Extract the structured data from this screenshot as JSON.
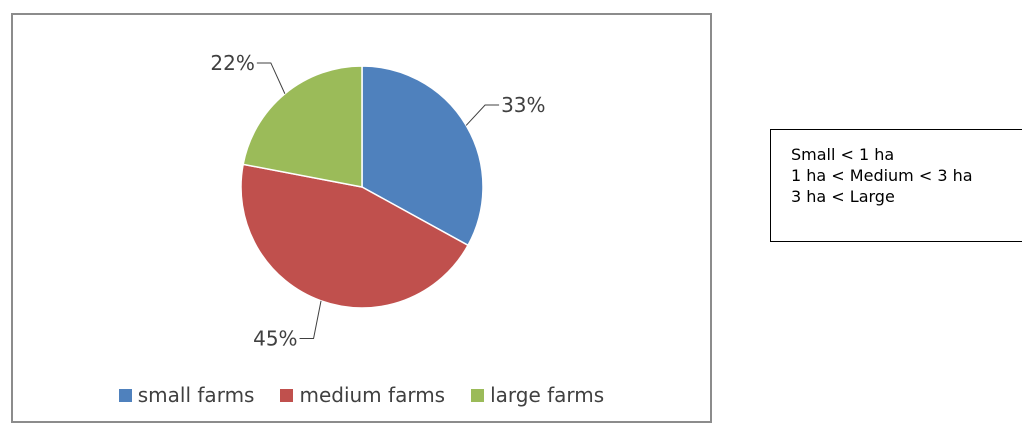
{
  "chart_data": {
    "type": "pie",
    "title": "",
    "slices": [
      {
        "name": "small farms",
        "value": 33,
        "label": "33%",
        "color": "#4f81bd"
      },
      {
        "name": "medium farms",
        "value": 45,
        "label": "45%",
        "color": "#c0504d"
      },
      {
        "name": "large farms",
        "value": 22,
        "label": "22%",
        "color": "#9bbb59"
      }
    ],
    "legend_position": "bottom",
    "data_labels": "outside with leader lines"
  },
  "note": {
    "lines": [
      "Small < 1 ha",
      "1 ha < Medium < 3 ha",
      "3 ha < Large"
    ]
  }
}
